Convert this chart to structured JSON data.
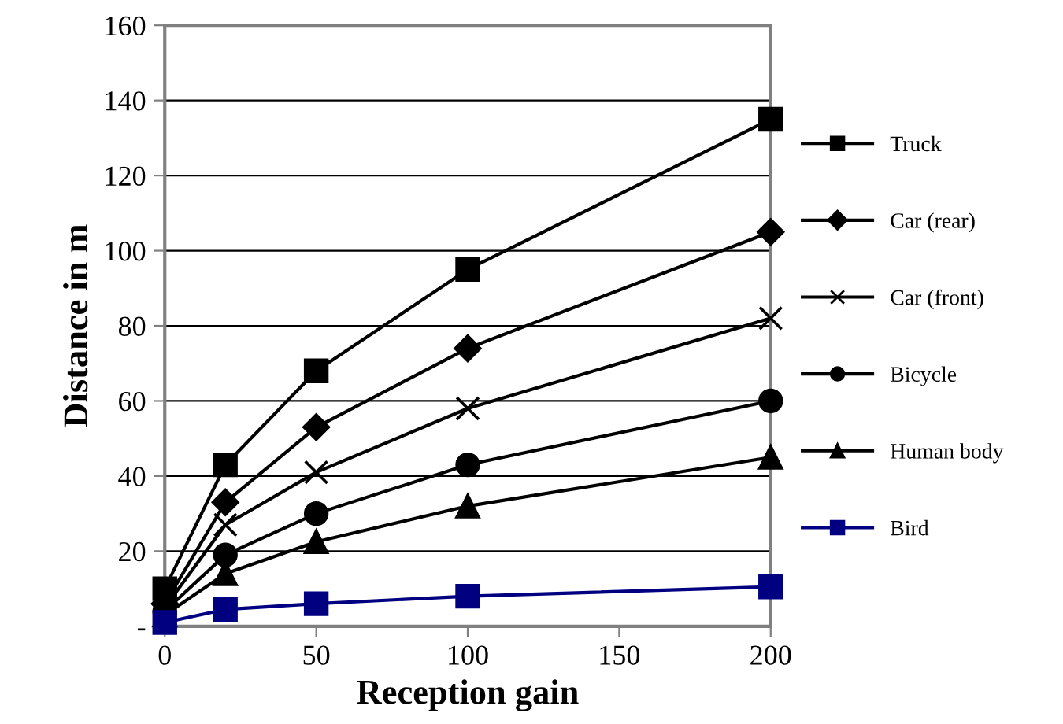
{
  "chart_data": {
    "type": "line",
    "xlabel": "Reception gain",
    "ylabel": "Distance in m",
    "x": [
      0,
      20,
      50,
      100,
      200
    ],
    "xlim": [
      0,
      200
    ],
    "xticks": [
      0,
      50,
      100,
      150,
      200
    ],
    "ylim": [
      0,
      160
    ],
    "yticks": [
      {
        "value": 0,
        "label": "-"
      },
      20,
      40,
      60,
      80,
      100,
      120,
      140,
      160
    ],
    "grid": "y",
    "legend": "right",
    "line_style": "solid",
    "series": [
      {
        "name": "Truck",
        "color": "#000000",
        "marker": "square",
        "values": [
          10,
          43,
          68,
          95,
          135
        ]
      },
      {
        "name": "Car (rear)",
        "color": "#000000",
        "marker": "diamond",
        "values": [
          6,
          33,
          53,
          74,
          105
        ]
      },
      {
        "name": "Car (front)",
        "color": "#000000",
        "marker": "cross",
        "values": [
          5,
          27,
          41,
          58,
          82
        ]
      },
      {
        "name": "Bicycle",
        "color": "#000000",
        "marker": "circle",
        "values": [
          4,
          19,
          30,
          43,
          60
        ]
      },
      {
        "name": "Human body",
        "color": "#000000",
        "marker": "triangle",
        "values": [
          3,
          14,
          22.5,
          32,
          45
        ]
      },
      {
        "name": "Bird",
        "color": "#000080",
        "marker": "square",
        "values": [
          1,
          4.5,
          6,
          8,
          10.5
        ]
      }
    ]
  }
}
